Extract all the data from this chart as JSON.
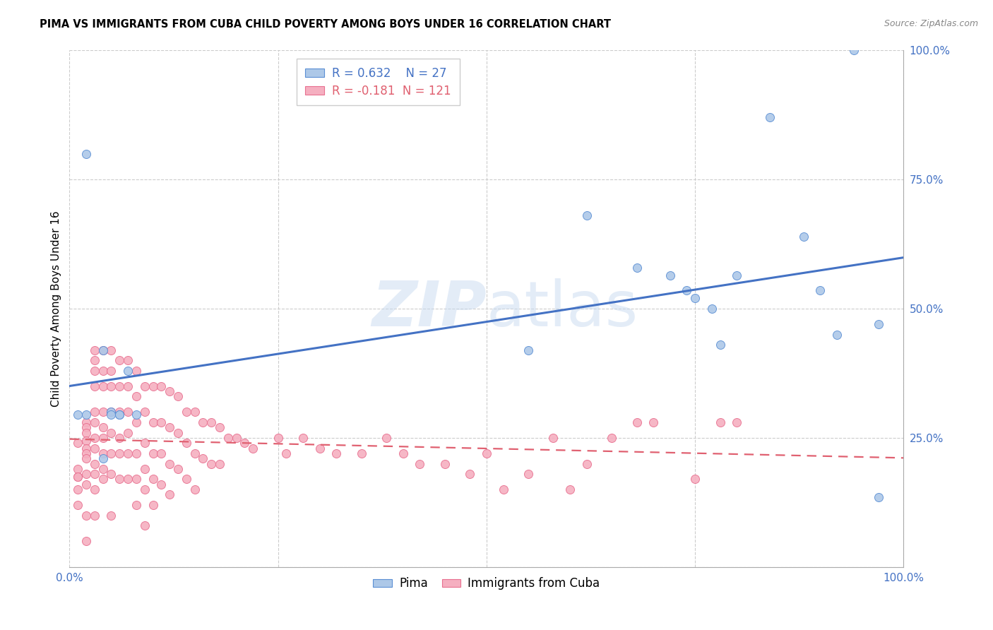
{
  "title": "PIMA VS IMMIGRANTS FROM CUBA CHILD POVERTY AMONG BOYS UNDER 16 CORRELATION CHART",
  "source": "Source: ZipAtlas.com",
  "ylabel": "Child Poverty Among Boys Under 16",
  "watermark": "ZIPatlas",
  "xlim": [
    0.0,
    1.0
  ],
  "ylim": [
    0.0,
    1.0
  ],
  "xticks": [
    0.0,
    1.0
  ],
  "yticks": [
    0.25,
    0.5,
    0.75,
    1.0
  ],
  "xticklabels": [
    "0.0%",
    "100.0%"
  ],
  "yticklabels": [
    "25.0%",
    "50.0%",
    "75.0%",
    "100.0%"
  ],
  "grid_ticks": [
    0.0,
    0.25,
    0.5,
    0.75,
    1.0
  ],
  "legend_labels": [
    "Pima",
    "Immigrants from Cuba"
  ],
  "pima_color": "#adc8e8",
  "cuba_color": "#f5afc0",
  "pima_edge_color": "#5b8fd4",
  "cuba_edge_color": "#e87090",
  "pima_line_color": "#4472c4",
  "cuba_line_color": "#e06070",
  "pima_R": 0.632,
  "pima_N": 27,
  "cuba_R": -0.181,
  "cuba_N": 121,
  "pima_points": [
    [
      0.01,
      0.295
    ],
    [
      0.02,
      0.295
    ],
    [
      0.04,
      0.42
    ],
    [
      0.04,
      0.21
    ],
    [
      0.05,
      0.3
    ],
    [
      0.05,
      0.295
    ],
    [
      0.06,
      0.295
    ],
    [
      0.06,
      0.295
    ],
    [
      0.07,
      0.38
    ],
    [
      0.02,
      0.8
    ],
    [
      0.08,
      0.295
    ],
    [
      0.55,
      0.42
    ],
    [
      0.62,
      0.68
    ],
    [
      0.68,
      0.58
    ],
    [
      0.72,
      0.565
    ],
    [
      0.74,
      0.535
    ],
    [
      0.75,
      0.52
    ],
    [
      0.77,
      0.5
    ],
    [
      0.78,
      0.43
    ],
    [
      0.8,
      0.565
    ],
    [
      0.84,
      0.87
    ],
    [
      0.88,
      0.64
    ],
    [
      0.9,
      0.535
    ],
    [
      0.92,
      0.45
    ],
    [
      0.94,
      1.0
    ],
    [
      0.97,
      0.47
    ],
    [
      0.97,
      0.135
    ]
  ],
  "cuba_points": [
    [
      0.01,
      0.24
    ],
    [
      0.01,
      0.19
    ],
    [
      0.01,
      0.175
    ],
    [
      0.01,
      0.175
    ],
    [
      0.01,
      0.15
    ],
    [
      0.01,
      0.12
    ],
    [
      0.02,
      0.28
    ],
    [
      0.02,
      0.27
    ],
    [
      0.02,
      0.26
    ],
    [
      0.02,
      0.245
    ],
    [
      0.02,
      0.23
    ],
    [
      0.02,
      0.22
    ],
    [
      0.02,
      0.21
    ],
    [
      0.02,
      0.18
    ],
    [
      0.02,
      0.16
    ],
    [
      0.02,
      0.1
    ],
    [
      0.02,
      0.05
    ],
    [
      0.03,
      0.42
    ],
    [
      0.03,
      0.4
    ],
    [
      0.03,
      0.38
    ],
    [
      0.03,
      0.35
    ],
    [
      0.03,
      0.3
    ],
    [
      0.03,
      0.28
    ],
    [
      0.03,
      0.25
    ],
    [
      0.03,
      0.23
    ],
    [
      0.03,
      0.2
    ],
    [
      0.03,
      0.18
    ],
    [
      0.03,
      0.15
    ],
    [
      0.03,
      0.1
    ],
    [
      0.04,
      0.42
    ],
    [
      0.04,
      0.38
    ],
    [
      0.04,
      0.35
    ],
    [
      0.04,
      0.3
    ],
    [
      0.04,
      0.27
    ],
    [
      0.04,
      0.25
    ],
    [
      0.04,
      0.22
    ],
    [
      0.04,
      0.19
    ],
    [
      0.04,
      0.17
    ],
    [
      0.05,
      0.42
    ],
    [
      0.05,
      0.38
    ],
    [
      0.05,
      0.35
    ],
    [
      0.05,
      0.3
    ],
    [
      0.05,
      0.26
    ],
    [
      0.05,
      0.22
    ],
    [
      0.05,
      0.18
    ],
    [
      0.05,
      0.1
    ],
    [
      0.06,
      0.4
    ],
    [
      0.06,
      0.35
    ],
    [
      0.06,
      0.3
    ],
    [
      0.06,
      0.25
    ],
    [
      0.06,
      0.22
    ],
    [
      0.06,
      0.17
    ],
    [
      0.07,
      0.4
    ],
    [
      0.07,
      0.35
    ],
    [
      0.07,
      0.3
    ],
    [
      0.07,
      0.26
    ],
    [
      0.07,
      0.22
    ],
    [
      0.07,
      0.17
    ],
    [
      0.08,
      0.38
    ],
    [
      0.08,
      0.33
    ],
    [
      0.08,
      0.28
    ],
    [
      0.08,
      0.22
    ],
    [
      0.08,
      0.17
    ],
    [
      0.08,
      0.12
    ],
    [
      0.09,
      0.35
    ],
    [
      0.09,
      0.3
    ],
    [
      0.09,
      0.24
    ],
    [
      0.09,
      0.19
    ],
    [
      0.09,
      0.15
    ],
    [
      0.09,
      0.08
    ],
    [
      0.1,
      0.35
    ],
    [
      0.1,
      0.28
    ],
    [
      0.1,
      0.22
    ],
    [
      0.1,
      0.17
    ],
    [
      0.1,
      0.12
    ],
    [
      0.11,
      0.35
    ],
    [
      0.11,
      0.28
    ],
    [
      0.11,
      0.22
    ],
    [
      0.11,
      0.16
    ],
    [
      0.12,
      0.34
    ],
    [
      0.12,
      0.27
    ],
    [
      0.12,
      0.2
    ],
    [
      0.12,
      0.14
    ],
    [
      0.13,
      0.33
    ],
    [
      0.13,
      0.26
    ],
    [
      0.13,
      0.19
    ],
    [
      0.14,
      0.3
    ],
    [
      0.14,
      0.24
    ],
    [
      0.14,
      0.17
    ],
    [
      0.15,
      0.3
    ],
    [
      0.15,
      0.22
    ],
    [
      0.15,
      0.15
    ],
    [
      0.16,
      0.28
    ],
    [
      0.16,
      0.21
    ],
    [
      0.17,
      0.28
    ],
    [
      0.17,
      0.2
    ],
    [
      0.18,
      0.27
    ],
    [
      0.18,
      0.2
    ],
    [
      0.19,
      0.25
    ],
    [
      0.2,
      0.25
    ],
    [
      0.21,
      0.24
    ],
    [
      0.22,
      0.23
    ],
    [
      0.25,
      0.25
    ],
    [
      0.26,
      0.22
    ],
    [
      0.28,
      0.25
    ],
    [
      0.3,
      0.23
    ],
    [
      0.32,
      0.22
    ],
    [
      0.35,
      0.22
    ],
    [
      0.38,
      0.25
    ],
    [
      0.4,
      0.22
    ],
    [
      0.42,
      0.2
    ],
    [
      0.45,
      0.2
    ],
    [
      0.48,
      0.18
    ],
    [
      0.5,
      0.22
    ],
    [
      0.52,
      0.15
    ],
    [
      0.55,
      0.18
    ],
    [
      0.58,
      0.25
    ],
    [
      0.6,
      0.15
    ],
    [
      0.62,
      0.2
    ],
    [
      0.65,
      0.25
    ],
    [
      0.68,
      0.28
    ],
    [
      0.7,
      0.28
    ],
    [
      0.75,
      0.17
    ],
    [
      0.78,
      0.28
    ],
    [
      0.8,
      0.28
    ]
  ]
}
